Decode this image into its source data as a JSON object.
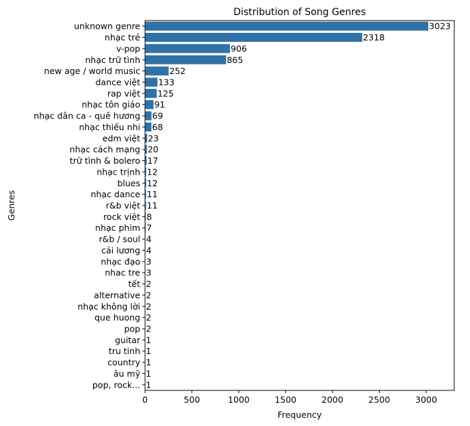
{
  "chart_data": {
    "type": "bar",
    "orientation": "horizontal",
    "title": "Distribution of Song Genres",
    "xlabel": "Frequency",
    "ylabel": "Genres",
    "xlim": [
      0,
      3300
    ],
    "xticks": [
      0,
      500,
      1000,
      1500,
      2000,
      2500,
      3000
    ],
    "grid": false,
    "bar_color": "#2f72a8",
    "categories": [
      "unknown genre",
      "nhạc trẻ",
      "v-pop",
      "nhạc trữ tình",
      "new age / world music",
      "dance việt",
      "rap việt",
      "nhạc tôn giáo",
      "nhạc dân ca - quê hương",
      "nhạc thiếu nhi",
      "edm việt",
      "nhạc cách mạng",
      "trữ tình & bolero",
      "nhạc trịnh",
      "blues",
      "nhạc dance",
      "r&b việt",
      "rock việt",
      "nhạc phim",
      "r&b / soul",
      "cải lương",
      "nhạc đạo",
      "nhac tre",
      "tết",
      "alternative",
      "nhạc không lời",
      "que huong",
      "pop",
      "guitar",
      "tru tinh",
      "country",
      "âu mỹ",
      "pop, rock..."
    ],
    "values": [
      3023,
      2318,
      906,
      865,
      252,
      133,
      125,
      91,
      69,
      68,
      23,
      20,
      17,
      12,
      12,
      11,
      11,
      8,
      7,
      4,
      4,
      3,
      3,
      2,
      2,
      2,
      2,
      2,
      1,
      1,
      1,
      1,
      1
    ]
  }
}
